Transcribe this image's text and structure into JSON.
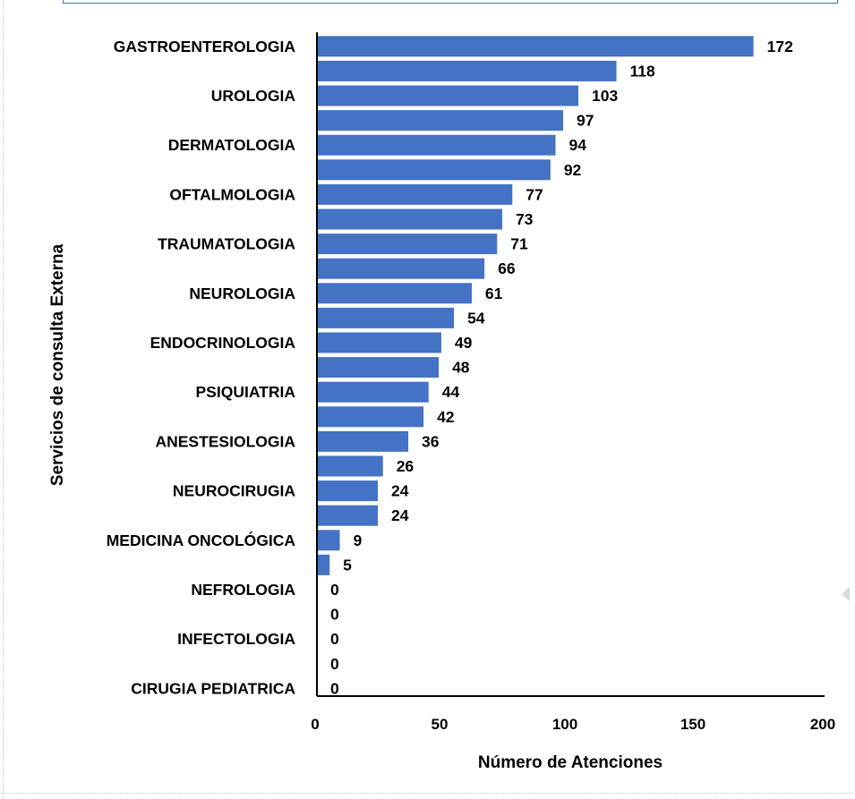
{
  "colors": {
    "bar": "#4472c4",
    "axis": "#000000",
    "frame": "#4472c4"
  },
  "chart_data": {
    "type": "bar",
    "orientation": "horizontal",
    "xlabel": "Número de Atenciones",
    "ylabel": "Servicios de consulta Externa",
    "xlim": [
      0,
      200
    ],
    "xticks": [
      "0",
      "50",
      "100",
      "150",
      "200"
    ],
    "grid": false,
    "legend": "none",
    "categories": [
      "GASTROENTEROLOGIA",
      "",
      "UROLOGIA",
      "",
      "DERMATOLOGIA",
      "",
      "OFTALMOLOGIA",
      "",
      "TRAUMATOLOGIA",
      "",
      "NEUROLOGIA",
      "",
      "ENDOCRINOLOGIA",
      "",
      "PSIQUIATRIA",
      "",
      "ANESTESIOLOGIA",
      "",
      "NEUROCIRUGIA",
      "",
      "MEDICINA ONCOLÓGICA",
      "",
      "NEFROLOGIA",
      "",
      "INFECTOLOGIA",
      "",
      "CIRUGIA PEDIATRICA"
    ],
    "values": [
      172,
      118,
      103,
      97,
      94,
      92,
      77,
      73,
      71,
      66,
      61,
      54,
      49,
      48,
      44,
      42,
      36,
      26,
      24,
      24,
      9,
      5,
      0,
      0,
      0,
      0,
      0
    ],
    "value_labels": [
      "172",
      "118",
      "103",
      "97",
      "94",
      "92",
      "77",
      "73",
      "71",
      "66",
      "61",
      "54",
      "49",
      "48",
      "44",
      "42",
      "36",
      "26",
      "24",
      "24",
      "9",
      "5",
      "0",
      "0",
      "0",
      "0",
      "0"
    ]
  }
}
